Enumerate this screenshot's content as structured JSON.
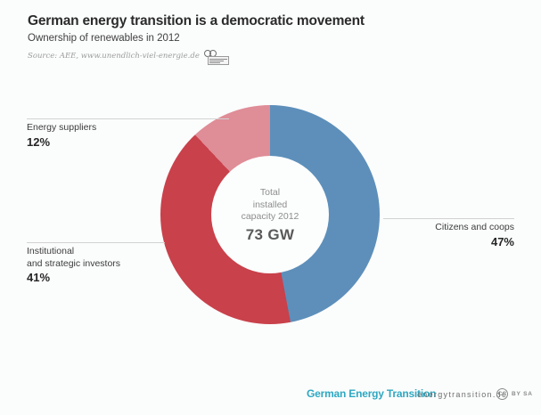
{
  "header": {
    "title": "German energy transition is a democratic movement",
    "subtitle": "Ownership of renewables in 2012",
    "source": "Source: AEE, www.unendlich-viel-energie.de"
  },
  "chart_data": {
    "type": "pie",
    "donut": true,
    "title": "Ownership of renewables in 2012",
    "start_angle_deg": 0,
    "direction": "clockwise",
    "categories": [
      "Citizens and coops",
      "Institutional and strategic investors",
      "Energy suppliers"
    ],
    "values": [
      47,
      41,
      12
    ],
    "unit": "%",
    "colors": [
      "#5d8fba",
      "#c9414b",
      "#df8d97"
    ],
    "center_label": {
      "lines": [
        "Total",
        "installed",
        "capacity 2012"
      ],
      "value": "73 GW"
    }
  },
  "labels": {
    "citizens": {
      "name": "Citizens and coops",
      "pct": "47%"
    },
    "institutional": {
      "name_line1": "Institutional",
      "name_line2": "and strategic investors",
      "pct": "41%"
    },
    "suppliers": {
      "name": "Energy suppliers",
      "pct": "12%"
    }
  },
  "center": {
    "line1": "Total",
    "line2": "installed",
    "line3": "capacity 2012",
    "value": "73 GW"
  },
  "footer": {
    "brand": "German Energy Transition",
    "site": "energytransition.de",
    "license_cc": "CC",
    "license_terms": "BY SA"
  }
}
